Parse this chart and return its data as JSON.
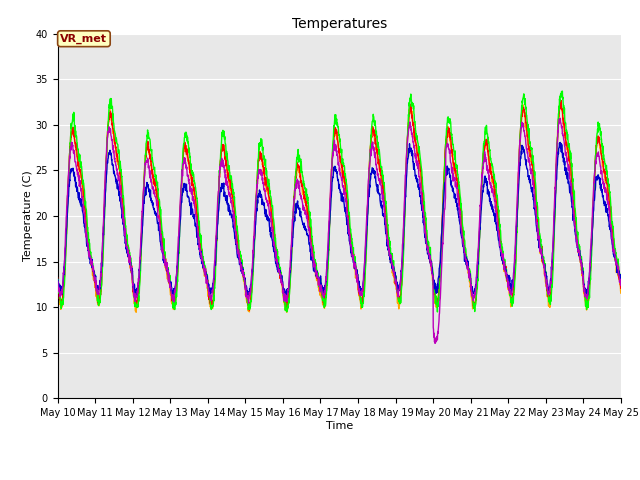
{
  "title": "Temperatures",
  "xlabel": "Time",
  "ylabel": "Temperature (C)",
  "ylim": [
    0,
    40
  ],
  "n_days": 15,
  "xtick_labels": [
    "May 10",
    "May 11",
    "May 12",
    "May 13",
    "May 14",
    "May 15",
    "May 16",
    "May 17",
    "May 18",
    "May 19",
    "May 20",
    "May 21",
    "May 22",
    "May 23",
    "May 24",
    "May 25"
  ],
  "annotation": "VR_met",
  "series": {
    "Panel T": {
      "color": "#FF0000"
    },
    "Old Ref Temp": {
      "color": "#FFA500"
    },
    "AM25T Ref": {
      "color": "#00FF00"
    },
    "HMP45 T": {
      "color": "#0000CC"
    },
    "CNR1 PRT": {
      "color": "#BB00BB"
    }
  },
  "bg_color": "#E8E8E8",
  "fig_bg_color": "#FFFFFF",
  "grid_color": "#FFFFFF",
  "linewidth": 1.0,
  "title_fontsize": 10,
  "label_fontsize": 8,
  "tick_fontsize": 7,
  "legend_fontsize": 8
}
